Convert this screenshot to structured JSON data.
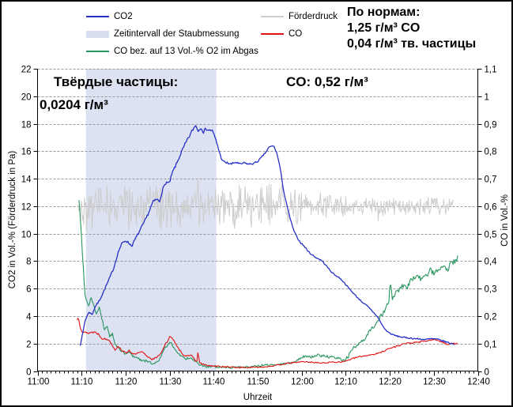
{
  "legend": {
    "col1": [
      {
        "label": "CO2",
        "swatch": "line",
        "color": "#2630C8"
      },
      {
        "label": "Zeitintervall der Staubmessung",
        "swatch": "band",
        "color": "#D5DDEE"
      },
      {
        "label": "CO bez. auf 13 Vol.-% O2 im Abgas",
        "swatch": "line",
        "color": "#28955F"
      }
    ],
    "col2": [
      {
        "label": "Förderdruck",
        "swatch": "line",
        "color": "#CDCDCD"
      },
      {
        "label": "CO",
        "swatch": "line",
        "color": "#E01212"
      }
    ]
  },
  "norms": {
    "line1": "По нормам:",
    "line2": "1,25 г/м³ CO",
    "line3": "0,04 г/м³ тв. частицы"
  },
  "annotations": {
    "particles_line1": "Твёрдые частицы:",
    "particles_line2": "0,0204 г/м³",
    "co_value": "CO: 0,52 г/м³"
  },
  "chart_data": {
    "type": "line",
    "x_axis": {
      "label": "Uhrzeit",
      "ticks": [
        "11:00",
        "11:10",
        "11:20",
        "11:30",
        "11:40",
        "11:50",
        "12:00",
        "12:10",
        "12:20",
        "12:30",
        "12:40"
      ],
      "range_minutes": [
        0,
        100
      ],
      "minor_tick_every_min": 1
    },
    "y_left": {
      "label": "CO2  in Vol.-%  (Förderdruck in Pa)",
      "ticks": [
        "0",
        "2",
        "4",
        "6",
        "8",
        "10",
        "12",
        "14",
        "16",
        "18",
        "20",
        "22"
      ],
      "range": [
        0,
        22
      ],
      "gridlines": "dashed"
    },
    "y_right": {
      "label": "CO in Vol.-%",
      "ticks": [
        "0",
        "0,1",
        "0,2",
        "0,3",
        "0,4",
        "0,5",
        "0,6",
        "0,7",
        "0,8",
        "0,9",
        "1",
        "1,1"
      ],
      "range": [
        0,
        1.1
      ]
    },
    "band": {
      "name": "Zeitintervall der Staubmessung",
      "x_start_min": 11.0,
      "x_end_min": 40.6,
      "color": "#DCE2F1"
    },
    "series": [
      {
        "name": "Förderdruck",
        "axis": "left",
        "color": "#CDCDCD",
        "stroke_width": 1,
        "noise": {
          "baseline": 12,
          "start_min": 9.2,
          "end_min": 94.6,
          "seed": 42,
          "amplitude_keys": [
            [
              9.2,
              1.3
            ],
            [
              40,
              1.3
            ],
            [
              55,
              1.15
            ],
            [
              63,
              0.9
            ],
            [
              68,
              0.55
            ],
            [
              95,
              0.5
            ]
          ]
        }
      },
      {
        "name": "CO bez. auf 13 Vol.-% O2 im Abgas",
        "axis": "right",
        "color": "#28955F",
        "stroke_width": 1.1,
        "seed": 99,
        "jitter_keys": [
          [
            9,
            0.007
          ],
          [
            20,
            0.004
          ],
          [
            60,
            0.004
          ],
          [
            75,
            0.008
          ],
          [
            95,
            0.011
          ]
        ],
        "points": [
          [
            9.4,
            0.625
          ],
          [
            9.9,
            0.51
          ],
          [
            10.4,
            0.375
          ],
          [
            10.8,
            0.28
          ],
          [
            11.1,
            0.255
          ],
          [
            11.7,
            0.24
          ],
          [
            12.2,
            0.27
          ],
          [
            12.9,
            0.23
          ],
          [
            13.4,
            0.207
          ],
          [
            14.0,
            0.23
          ],
          [
            14.7,
            0.185
          ],
          [
            15.2,
            0.15
          ],
          [
            15.8,
            0.165
          ],
          [
            16.4,
            0.125
          ],
          [
            17.0,
            0.135
          ],
          [
            17.6,
            0.097
          ],
          [
            18.3,
            0.085
          ],
          [
            19.0,
            0.075
          ],
          [
            20.0,
            0.06
          ],
          [
            20.8,
            0.07
          ],
          [
            21.6,
            0.055
          ],
          [
            22.5,
            0.05
          ],
          [
            23.5,
            0.04
          ],
          [
            25.0,
            0.035
          ],
          [
            26.5,
            0.025
          ],
          [
            27.8,
            0.045
          ],
          [
            29.0,
            0.085
          ],
          [
            30.2,
            0.105
          ],
          [
            31.2,
            0.08
          ],
          [
            32.2,
            0.06
          ],
          [
            33.5,
            0.045
          ],
          [
            35.0,
            0.045
          ],
          [
            36.5,
            0.025
          ],
          [
            38.0,
            0.017
          ],
          [
            39.5,
            0.015
          ],
          [
            41,
            0.015
          ],
          [
            43,
            0.014
          ],
          [
            45,
            0.013
          ],
          [
            47,
            0.015
          ],
          [
            49,
            0.016
          ],
          [
            51,
            0.02
          ],
          [
            53,
            0.022
          ],
          [
            55,
            0.025
          ],
          [
            56.5,
            0.028
          ],
          [
            58,
            0.032
          ],
          [
            59.5,
            0.045
          ],
          [
            60.5,
            0.054
          ],
          [
            62,
            0.05
          ],
          [
            63.6,
            0.058
          ],
          [
            65,
            0.055
          ],
          [
            66.5,
            0.05
          ],
          [
            68,
            0.046
          ],
          [
            69.5,
            0.041
          ],
          [
            70.5,
            0.05
          ],
          [
            71.3,
            0.078
          ],
          [
            72.2,
            0.088
          ],
          [
            73.1,
            0.098
          ],
          [
            74.4,
            0.115
          ],
          [
            75.6,
            0.15
          ],
          [
            76.7,
            0.17
          ],
          [
            78,
            0.2
          ],
          [
            79.2,
            0.23
          ],
          [
            79.8,
            0.26
          ],
          [
            80.1,
            0.322
          ],
          [
            80.6,
            0.26
          ],
          [
            81.5,
            0.288
          ],
          [
            82.8,
            0.308
          ],
          [
            83.9,
            0.302
          ],
          [
            85.1,
            0.337
          ],
          [
            86.4,
            0.351
          ],
          [
            87.2,
            0.33
          ],
          [
            88.1,
            0.343
          ],
          [
            89.2,
            0.366
          ],
          [
            90.2,
            0.355
          ],
          [
            91,
            0.374
          ],
          [
            92.3,
            0.386
          ],
          [
            93.2,
            0.37
          ],
          [
            94,
            0.4
          ],
          [
            94.8,
            0.395
          ],
          [
            95.5,
            0.417
          ]
        ]
      },
      {
        "name": "CO",
        "axis": "right",
        "color": "#E01212",
        "stroke_width": 1.1,
        "seed": 13,
        "jitter_keys": [
          [
            9,
            0.005
          ],
          [
            20,
            0.003
          ],
          [
            60,
            0.002
          ],
          [
            80,
            0.003
          ],
          [
            95,
            0.003
          ]
        ],
        "points": [
          [
            9.0,
            0.185
          ],
          [
            9.3,
            0.198
          ],
          [
            9.7,
            0.16
          ],
          [
            10.2,
            0.144
          ],
          [
            11,
            0.138
          ],
          [
            12,
            0.14
          ],
          [
            13,
            0.142
          ],
          [
            13.8,
            0.135
          ],
          [
            14.6,
            0.12
          ],
          [
            15.5,
            0.115
          ],
          [
            16.1,
            0.115
          ],
          [
            16.8,
            0.1
          ],
          [
            17.6,
            0.078
          ],
          [
            18.4,
            0.09
          ],
          [
            19.2,
            0.075
          ],
          [
            20,
            0.065
          ],
          [
            20.8,
            0.075
          ],
          [
            21.8,
            0.06
          ],
          [
            22.8,
            0.065
          ],
          [
            23.8,
            0.069
          ],
          [
            24.8,
            0.055
          ],
          [
            26,
            0.043
          ],
          [
            27.2,
            0.05
          ],
          [
            28.2,
            0.07
          ],
          [
            29,
            0.098
          ],
          [
            29.7,
            0.11
          ],
          [
            30.1,
            0.13
          ],
          [
            30.8,
            0.115
          ],
          [
            31.6,
            0.09
          ],
          [
            32.6,
            0.069
          ],
          [
            33.4,
            0.055
          ],
          [
            34.2,
            0.058
          ],
          [
            35,
            0.055
          ],
          [
            35.8,
            0.04
          ],
          [
            36.2,
            0.035
          ],
          [
            36.45,
            0.072
          ],
          [
            36.8,
            0.03
          ],
          [
            37.5,
            0.025
          ],
          [
            38.5,
            0.02
          ],
          [
            40,
            0.018
          ],
          [
            42,
            0.016
          ],
          [
            44,
            0.014
          ],
          [
            46,
            0.013
          ],
          [
            48,
            0.013
          ],
          [
            50,
            0.014
          ],
          [
            52,
            0.016
          ],
          [
            54,
            0.02
          ],
          [
            56,
            0.026
          ],
          [
            58,
            0.03
          ],
          [
            60,
            0.034
          ],
          [
            61.5,
            0.033
          ],
          [
            63,
            0.031
          ],
          [
            64.8,
            0.029
          ],
          [
            66.5,
            0.032
          ],
          [
            68,
            0.033
          ],
          [
            69.5,
            0.034
          ],
          [
            71,
            0.042
          ],
          [
            72.5,
            0.05
          ],
          [
            73.8,
            0.054
          ],
          [
            75.5,
            0.059
          ],
          [
            77.4,
            0.064
          ],
          [
            78.5,
            0.072
          ],
          [
            79.2,
            0.078
          ],
          [
            80.5,
            0.085
          ],
          [
            81.5,
            0.09
          ],
          [
            83,
            0.099
          ],
          [
            84,
            0.101
          ],
          [
            85.5,
            0.103
          ],
          [
            87,
            0.106
          ],
          [
            88.5,
            0.11
          ],
          [
            89.8,
            0.114
          ],
          [
            90.8,
            0.113
          ],
          [
            91.7,
            0.107
          ],
          [
            92.5,
            0.1
          ],
          [
            93.3,
            0.098
          ],
          [
            94.1,
            0.102
          ],
          [
            95.3,
            0.098
          ]
        ]
      },
      {
        "name": "CO2",
        "axis": "left",
        "color": "#2630C8",
        "stroke_width": 1.3,
        "seed": 7,
        "jitter_keys": [
          [
            9,
            0.05
          ],
          [
            25,
            0.1
          ],
          [
            40,
            0.12
          ],
          [
            44,
            0.08
          ],
          [
            54,
            0.05
          ],
          [
            60,
            0.05
          ],
          [
            70,
            0.04
          ],
          [
            85,
            0.05
          ],
          [
            95,
            0.05
          ]
        ],
        "points": [
          [
            9.7,
            1.9
          ],
          [
            10.3,
            2.8
          ],
          [
            10.8,
            3.7
          ],
          [
            11.7,
            4.3
          ],
          [
            12.4,
            4.1
          ],
          [
            13.1,
            4.7
          ],
          [
            13.8,
            5.0
          ],
          [
            14.9,
            5.7
          ],
          [
            16.0,
            6.5
          ],
          [
            16.8,
            7.1
          ],
          [
            17.3,
            7.5
          ],
          [
            18.0,
            8.3
          ],
          [
            18.6,
            8.9
          ],
          [
            19.2,
            9.3
          ],
          [
            20.0,
            9.5
          ],
          [
            20.8,
            9.3
          ],
          [
            21.4,
            9.1
          ],
          [
            22.2,
            9.6
          ],
          [
            23.2,
            10.2
          ],
          [
            24.2,
            10.8
          ],
          [
            25.2,
            11.5
          ],
          [
            26.2,
            12.3
          ],
          [
            27.0,
            12.5
          ],
          [
            27.7,
            12.35
          ],
          [
            28.4,
            13.2
          ],
          [
            29.2,
            13.75
          ],
          [
            29.9,
            13.65
          ],
          [
            30.7,
            14.5
          ],
          [
            31.6,
            15.1
          ],
          [
            32.5,
            15.8
          ],
          [
            33.5,
            16.5
          ],
          [
            34.5,
            17.1
          ],
          [
            35.4,
            17.65
          ],
          [
            36.0,
            17.9
          ],
          [
            36.5,
            17.45
          ],
          [
            37.1,
            17.75
          ],
          [
            37.7,
            17.4
          ],
          [
            38.3,
            17.65
          ],
          [
            39.0,
            17.5
          ],
          [
            39.6,
            17.55
          ],
          [
            40.3,
            17.0
          ],
          [
            40.9,
            16.4
          ],
          [
            41.5,
            15.7
          ],
          [
            42.1,
            15.25
          ],
          [
            43,
            15.15
          ],
          [
            44,
            15.05
          ],
          [
            45,
            15.2
          ],
          [
            46,
            15.05
          ],
          [
            47,
            15.15
          ],
          [
            48,
            15.05
          ],
          [
            49,
            15.1
          ],
          [
            50,
            15.25
          ],
          [
            51,
            15.6
          ],
          [
            51.9,
            15.95
          ],
          [
            52.6,
            16.3
          ],
          [
            53.6,
            16.4
          ],
          [
            54.3,
            15.9
          ],
          [
            54.9,
            15.1
          ],
          [
            55.4,
            14.2
          ],
          [
            56,
            12.9
          ],
          [
            56.6,
            12.1
          ],
          [
            57.3,
            11.2
          ],
          [
            58,
            10.4
          ],
          [
            58.8,
            9.8
          ],
          [
            59.6,
            9.4
          ],
          [
            60.5,
            9.1
          ],
          [
            61.8,
            8.6
          ],
          [
            63,
            8.3
          ],
          [
            64.5,
            8.05
          ],
          [
            65.5,
            7.7
          ],
          [
            66.5,
            7.3
          ],
          [
            67.5,
            7.0
          ],
          [
            68.5,
            6.8
          ],
          [
            69.5,
            6.5
          ],
          [
            70.5,
            6.1
          ],
          [
            71.5,
            5.75
          ],
          [
            72.5,
            5.4
          ],
          [
            73.8,
            5.0
          ],
          [
            75,
            4.7
          ],
          [
            76.2,
            4.3
          ],
          [
            77.2,
            3.95
          ],
          [
            78.2,
            3.4
          ],
          [
            79,
            3.0
          ],
          [
            79.8,
            2.8
          ],
          [
            80.6,
            2.65
          ],
          [
            81.6,
            2.55
          ],
          [
            83,
            2.45
          ],
          [
            84.5,
            2.4
          ],
          [
            86,
            2.35
          ],
          [
            88,
            2.3
          ],
          [
            89.5,
            2.35
          ],
          [
            91,
            2.3
          ],
          [
            92,
            2.2
          ],
          [
            93,
            2.1
          ],
          [
            94,
            2.0
          ],
          [
            94.6,
            1.95
          ]
        ]
      }
    ]
  }
}
